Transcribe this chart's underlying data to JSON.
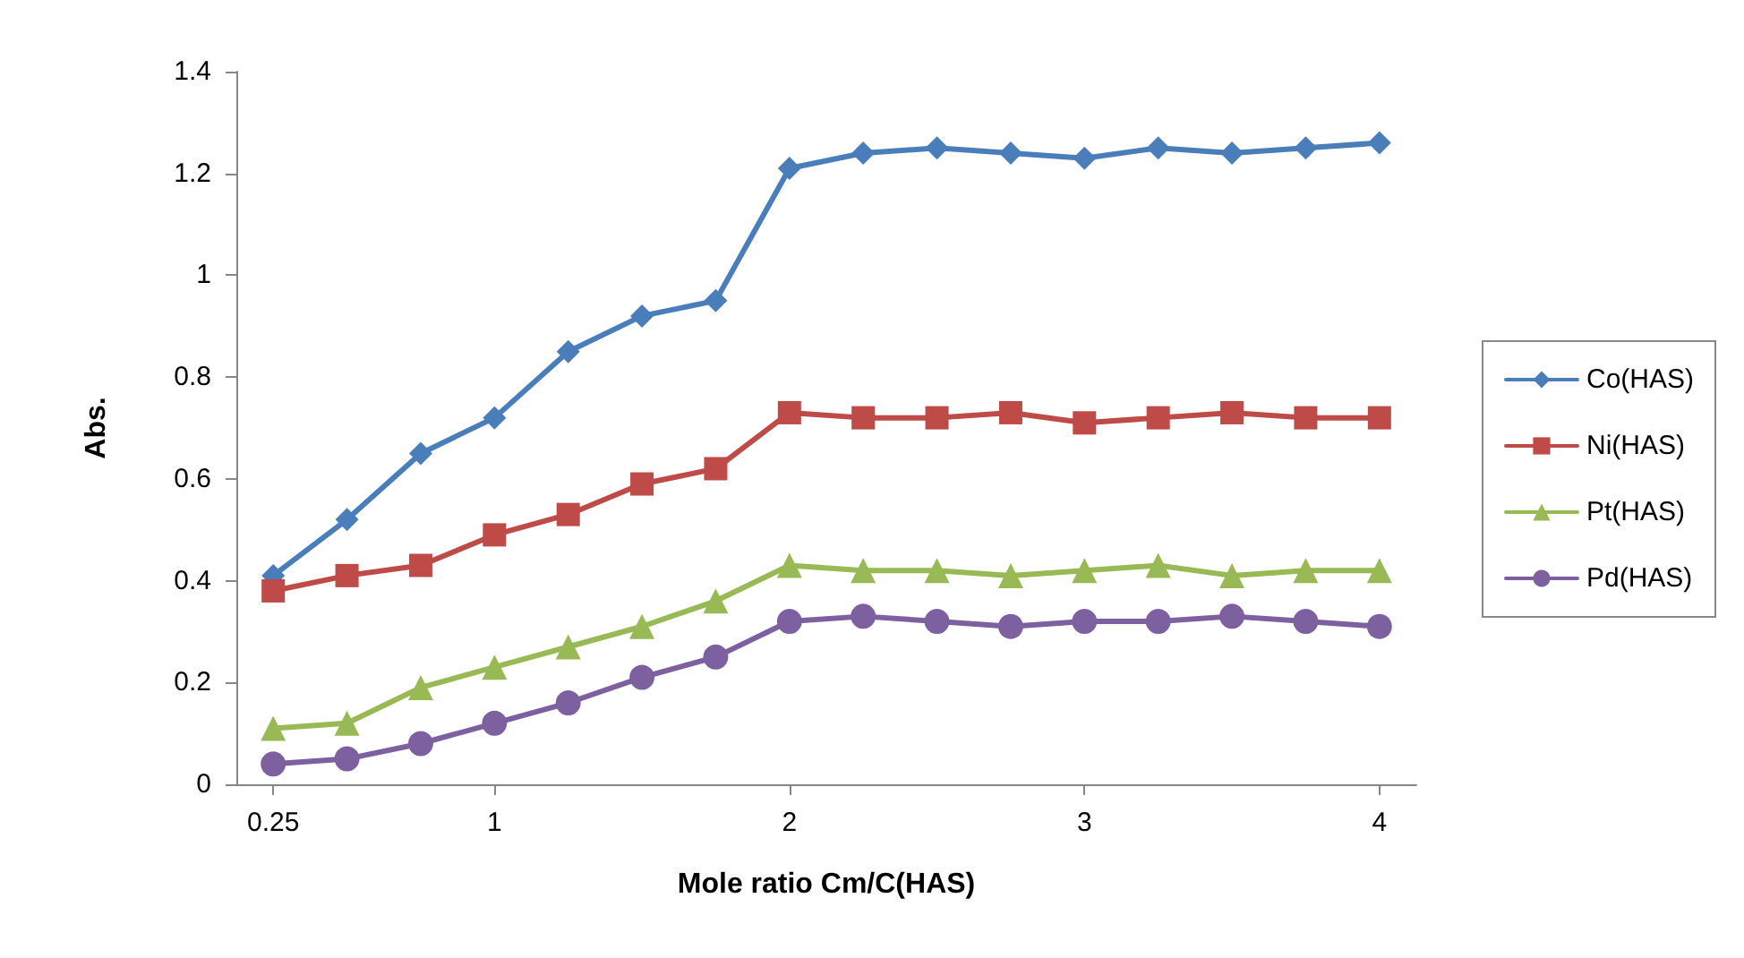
{
  "chart_data": {
    "type": "line",
    "xlabel": "Mole ratio Cm/C(HAS)",
    "ylabel": "Abs.",
    "x": [
      0.25,
      0.5,
      0.75,
      1,
      1.25,
      1.5,
      1.75,
      2,
      2.25,
      2.5,
      2.75,
      3,
      3.25,
      3.5,
      3.75,
      4
    ],
    "xlim": [
      0.125,
      4.125
    ],
    "xticks": [
      0.25,
      1,
      2,
      3,
      4
    ],
    "ylim": [
      0,
      1.4
    ],
    "yticks": [
      0,
      0.2,
      0.4,
      0.6,
      0.8,
      1,
      1.2,
      1.4
    ],
    "grid": false,
    "legend": "right",
    "line_style": "solid",
    "series": [
      {
        "name": "Co(HAS)",
        "color": "#4a7ebb",
        "marker": "diamond",
        "values": [
          0.41,
          0.52,
          0.65,
          0.72,
          0.85,
          0.92,
          0.95,
          1.21,
          1.24,
          1.25,
          1.24,
          1.23,
          1.25,
          1.24,
          1.25,
          1.26
        ]
      },
      {
        "name": "Ni(HAS)",
        "color": "#be4b48",
        "marker": "square",
        "values": [
          0.38,
          0.41,
          0.43,
          0.49,
          0.53,
          0.59,
          0.62,
          0.73,
          0.72,
          0.72,
          0.73,
          0.71,
          0.72,
          0.73,
          0.72,
          0.72
        ]
      },
      {
        "name": "Pt(HAS)",
        "color": "#98b954",
        "marker": "triangle",
        "values": [
          0.11,
          0.12,
          0.19,
          0.23,
          0.27,
          0.31,
          0.36,
          0.43,
          0.42,
          0.42,
          0.41,
          0.42,
          0.43,
          0.41,
          0.42,
          0.42
        ]
      },
      {
        "name": "Pd(HAS)",
        "color": "#7d60a0",
        "marker": "circle",
        "values": [
          0.04,
          0.05,
          0.08,
          0.12,
          0.16,
          0.21,
          0.25,
          0.32,
          0.33,
          0.32,
          0.31,
          0.32,
          0.32,
          0.33,
          0.32,
          0.31
        ]
      }
    ]
  }
}
